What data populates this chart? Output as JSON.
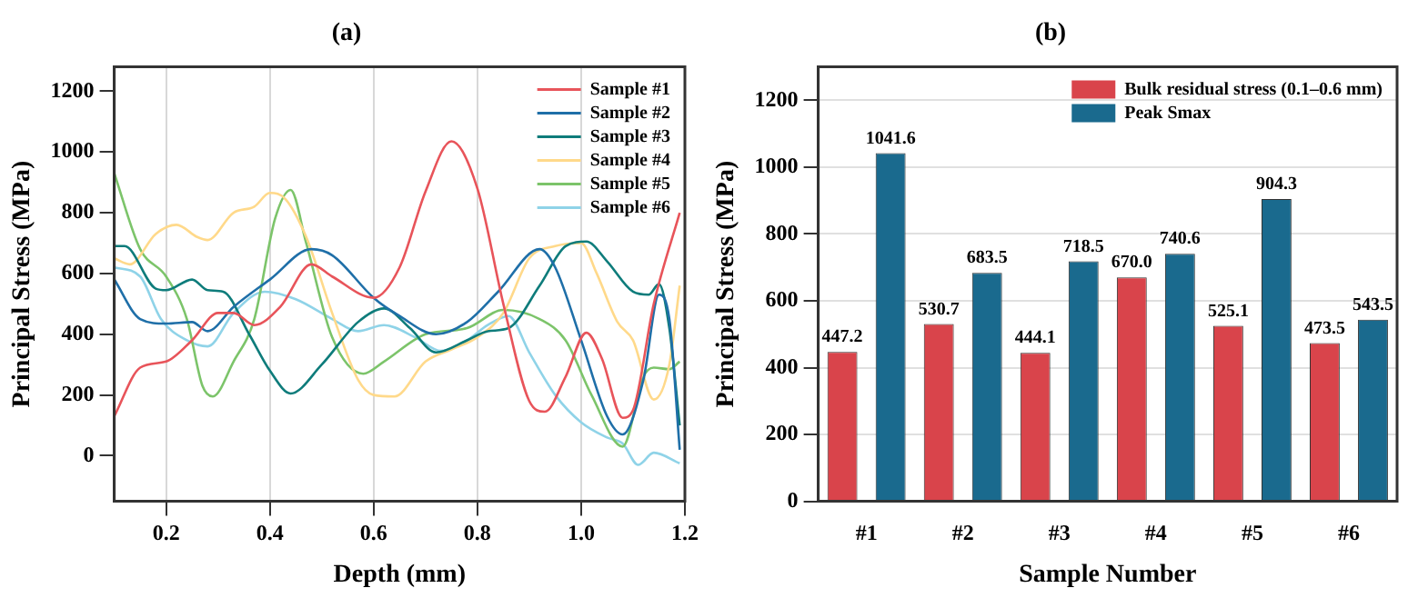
{
  "chart_data": [
    {
      "type": "line",
      "title": "(a)",
      "xlabel": "Depth (mm)",
      "ylabel": "Principal Stress (MPa)",
      "xlim": [
        0.1,
        1.2
      ],
      "xticks": [
        0.2,
        0.4,
        0.6,
        0.8,
        {
          "value": 1,
          "label": "1.0"
        },
        1.2
      ],
      "ylim": [
        -150,
        1280
      ],
      "yticks": [
        0,
        200,
        400,
        600,
        800,
        1000,
        1200
      ],
      "grid": "x",
      "legend": "top right",
      "marker": "none",
      "line_style": "solid",
      "series": [
        {
          "name": "Sample #1",
          "color": "#e8545a",
          "x": [
            0.1,
            0.15,
            0.2,
            0.25,
            0.3,
            0.33,
            0.37,
            0.42,
            0.48,
            0.52,
            0.6,
            0.65,
            0.7,
            0.75,
            0.8,
            0.85,
            0.9,
            0.93,
            0.97,
            1.01,
            1.04,
            1.08,
            1.1,
            1.14,
            1.19
          ],
          "values": [
            130,
            290,
            310,
            380,
            470,
            470,
            430,
            490,
            630,
            590,
            520,
            620,
            870,
            1035,
            880,
            500,
            180,
            145,
            260,
            405,
            320,
            125,
            150,
            500,
            800
          ]
        },
        {
          "name": "Sample #2",
          "color": "#1f6fa8",
          "x": [
            0.1,
            0.15,
            0.2,
            0.25,
            0.28,
            0.33,
            0.4,
            0.48,
            0.52,
            0.6,
            0.65,
            0.72,
            0.78,
            0.84,
            0.92,
            0.95,
            1.0,
            1.05,
            1.08,
            1.12,
            1.15,
            1.17,
            1.19
          ],
          "values": [
            580,
            450,
            435,
            440,
            410,
            490,
            580,
            680,
            660,
            520,
            460,
            400,
            440,
            540,
            680,
            620,
            380,
            130,
            70,
            250,
            530,
            450,
            20
          ]
        },
        {
          "name": "Sample #3",
          "color": "#0e7c7b",
          "x": [
            0.1,
            0.12,
            0.18,
            0.2,
            0.25,
            0.28,
            0.31,
            0.36,
            0.4,
            0.44,
            0.5,
            0.57,
            0.62,
            0.67,
            0.72,
            0.78,
            0.82,
            0.86,
            0.92,
            0.97,
            1.01,
            1.05,
            1.1,
            1.13,
            1.15,
            1.17,
            1.19
          ],
          "values": [
            690,
            690,
            550,
            545,
            580,
            545,
            540,
            400,
            280,
            205,
            300,
            440,
            485,
            420,
            340,
            380,
            410,
            420,
            560,
            690,
            705,
            640,
            540,
            530,
            565,
            420,
            100
          ]
        },
        {
          "name": "Sample #4",
          "color": "#ffd98a",
          "x": [
            0.1,
            0.13,
            0.18,
            0.22,
            0.26,
            0.28,
            0.33,
            0.37,
            0.4,
            0.43,
            0.47,
            0.52,
            0.57,
            0.6,
            0.64,
            0.7,
            0.75,
            0.8,
            0.85,
            0.9,
            0.95,
            1.0,
            1.03,
            1.07,
            1.1,
            1.14,
            1.17,
            1.19
          ],
          "values": [
            650,
            630,
            730,
            760,
            720,
            710,
            800,
            820,
            865,
            845,
            720,
            470,
            250,
            200,
            195,
            310,
            350,
            390,
            470,
            650,
            690,
            700,
            600,
            440,
            380,
            185,
            300,
            560
          ]
        },
        {
          "name": "Sample #5",
          "color": "#7cc46a",
          "x": [
            0.1,
            0.15,
            0.2,
            0.24,
            0.27,
            0.29,
            0.33,
            0.37,
            0.41,
            0.44,
            0.47,
            0.52,
            0.58,
            0.62,
            0.7,
            0.78,
            0.85,
            0.92,
            0.97,
            1.02,
            1.08,
            1.12,
            1.14,
            1.17,
            1.19
          ],
          "values": [
            930,
            680,
            590,
            450,
            230,
            195,
            310,
            450,
            780,
            875,
            700,
            390,
            270,
            310,
            400,
            420,
            480,
            450,
            380,
            200,
            30,
            260,
            290,
            285,
            310
          ]
        },
        {
          "name": "Sample #6",
          "color": "#8fd3e8",
          "x": [
            0.1,
            0.15,
            0.19,
            0.24,
            0.28,
            0.33,
            0.39,
            0.45,
            0.52,
            0.57,
            0.62,
            0.68,
            0.73,
            0.78,
            0.82,
            0.86,
            0.9,
            0.95,
            1.0,
            1.05,
            1.08,
            1.11,
            1.14,
            1.19
          ],
          "values": [
            620,
            590,
            450,
            380,
            360,
            470,
            540,
            515,
            450,
            410,
            430,
            390,
            345,
            380,
            430,
            460,
            340,
            200,
            110,
            60,
            40,
            -30,
            10,
            -25
          ]
        }
      ]
    },
    {
      "type": "bar",
      "title": "(b)",
      "xlabel": "Sample Number",
      "ylabel": "Principal Stress (MPa)",
      "categories": [
        "#1",
        "#2",
        "#3",
        "#4",
        "#5",
        "#6"
      ],
      "ylim": [
        0,
        1300
      ],
      "yticks": [
        0,
        200,
        400,
        600,
        800,
        1000,
        1200
      ],
      "grid": "y",
      "legend": "top right",
      "data_labels": true,
      "series": [
        {
          "name": "Bulk residual stress (0.1–0.6 mm)",
          "color": "#d9444b",
          "values": [
            447.2,
            530.7,
            444.1,
            670.0,
            525.1,
            473.5
          ],
          "value_labels": [
            "447.2",
            "530.7",
            "444.1",
            "670.0",
            "525.1",
            "473.5"
          ]
        },
        {
          "name": "Peak Smax",
          "color": "#1a6a8e",
          "values": [
            1041.6,
            683.5,
            718.5,
            740.6,
            904.3,
            543.5
          ],
          "value_labels": [
            "1041.6",
            "683.5",
            "718.5",
            "740.6",
            "904.3",
            "543.5"
          ]
        }
      ]
    }
  ]
}
